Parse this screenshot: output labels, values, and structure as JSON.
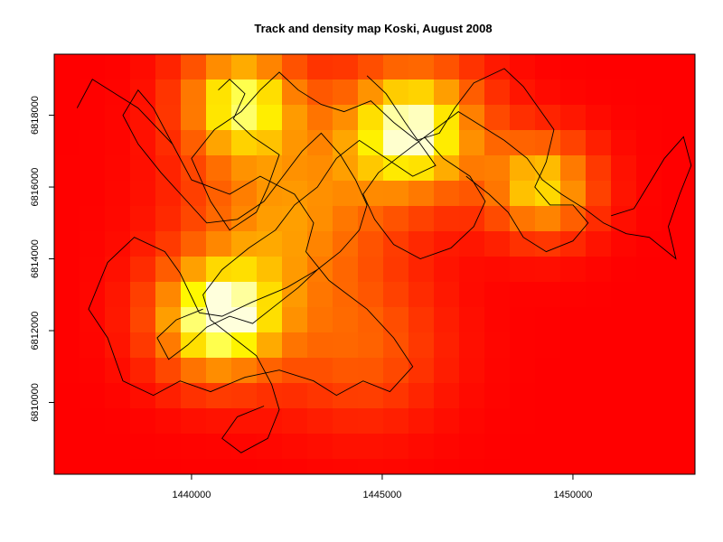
{
  "chart_data": {
    "type": "heatmap",
    "title": "Track and density map Koski, August 2008",
    "xlabel": "",
    "ylabel": "",
    "xlim": [
      1436400,
      1453200
    ],
    "ylim": [
      6808000,
      6819700
    ],
    "x_ticks": [
      1440000,
      1445000,
      1450000
    ],
    "x_tick_labels": [
      "1440000",
      "1445000",
      "1450000"
    ],
    "y_ticks": [
      6810000,
      6812000,
      6814000,
      6816000,
      6818000
    ],
    "y_tick_labels": [
      "6810000",
      "6812000",
      "6814000",
      "6816000",
      "6818000"
    ],
    "grid": false,
    "colormap": "heat",
    "colors": {
      "low": "#ff0000",
      "mid": "#ff8000",
      "high": "#ffff00",
      "peak": "#ffffe0",
      "track": "#000000",
      "frame": "#000000"
    },
    "density_peaks": [
      {
        "x": 1441300,
        "y": 6818400,
        "weight": 0.85,
        "spread": 1100
      },
      {
        "x": 1445800,
        "y": 6817600,
        "weight": 1.0,
        "spread": 1300
      },
      {
        "x": 1440700,
        "y": 6812300,
        "weight": 1.0,
        "spread": 1200
      },
      {
        "x": 1449200,
        "y": 6816000,
        "weight": 0.75,
        "spread": 1000
      },
      {
        "x": 1442500,
        "y": 6815200,
        "weight": 0.55,
        "spread": 1800
      },
      {
        "x": 1444500,
        "y": 6811500,
        "weight": 0.35,
        "spread": 1500
      }
    ],
    "track_segments": [
      [
        [
          1437000,
          6818200
        ],
        [
          1437400,
          6819000
        ],
        [
          1438600,
          6818200
        ],
        [
          1439500,
          6817200
        ],
        [
          1440000,
          6816200
        ],
        [
          1441000,
          6815800
        ],
        [
          1441800,
          6816300
        ],
        [
          1442700,
          6815800
        ],
        [
          1443200,
          6815000
        ],
        [
          1443000,
          6814200
        ],
        [
          1443600,
          6813400
        ],
        [
          1444600,
          6812600
        ],
        [
          1445300,
          6811800
        ],
        [
          1445800,
          6811000
        ],
        [
          1445200,
          6810300
        ],
        [
          1444500,
          6810600
        ],
        [
          1443800,
          6810200
        ],
        [
          1443200,
          6810600
        ],
        [
          1442300,
          6810900
        ],
        [
          1441400,
          6810700
        ],
        [
          1440500,
          6810300
        ],
        [
          1439700,
          6810600
        ],
        [
          1439000,
          6810200
        ],
        [
          1438200,
          6810600
        ],
        [
          1437800,
          6811800
        ],
        [
          1437300,
          6812600
        ],
        [
          1437800,
          6813900
        ],
        [
          1438500,
          6814600
        ],
        [
          1439300,
          6814200
        ],
        [
          1439700,
          6813600
        ],
        [
          1440200,
          6812500
        ],
        [
          1440800,
          6812400
        ],
        [
          1441600,
          6812800
        ],
        [
          1442500,
          6813200
        ],
        [
          1443300,
          6813700
        ]
      ],
      [
        [
          1440700,
          6818700
        ],
        [
          1441000,
          6819000
        ],
        [
          1441400,
          6818600
        ],
        [
          1441100,
          6817900
        ],
        [
          1441600,
          6817400
        ],
        [
          1442300,
          6816900
        ],
        [
          1442000,
          6816000
        ],
        [
          1441700,
          6815300
        ],
        [
          1441000,
          6814800
        ],
        [
          1440500,
          6815600
        ],
        [
          1440000,
          6816800
        ],
        [
          1440600,
          6817600
        ],
        [
          1441300,
          6818100
        ],
        [
          1441800,
          6818700
        ],
        [
          1442300,
          6819200
        ],
        [
          1442800,
          6818700
        ],
        [
          1443400,
          6818300
        ],
        [
          1444000,
          6818100
        ],
        [
          1444700,
          6818400
        ],
        [
          1445300,
          6817800
        ],
        [
          1445900,
          6817300
        ],
        [
          1446500,
          6817500
        ],
        [
          1446900,
          6818200
        ],
        [
          1447400,
          6818900
        ],
        [
          1448200,
          6819300
        ],
        [
          1448700,
          6818800
        ],
        [
          1449100,
          6818200
        ],
        [
          1449500,
          6817600
        ],
        [
          1449300,
          6816700
        ],
        [
          1449000,
          6816000
        ],
        [
          1449400,
          6815500
        ],
        [
          1450000,
          6815500
        ],
        [
          1450400,
          6815000
        ],
        [
          1450000,
          6814500
        ],
        [
          1449300,
          6814200
        ],
        [
          1448700,
          6814600
        ],
        [
          1448300,
          6815300
        ],
        [
          1447800,
          6815800
        ],
        [
          1447200,
          6816300
        ]
      ],
      [
        [
          1444600,
          6819100
        ],
        [
          1445100,
          6818600
        ],
        [
          1445600,
          6817800
        ],
        [
          1446000,
          6817200
        ],
        [
          1446400,
          6816600
        ],
        [
          1445800,
          6816300
        ],
        [
          1445100,
          6816800
        ],
        [
          1444400,
          6817300
        ],
        [
          1443800,
          6816800
        ],
        [
          1443300,
          6816000
        ],
        [
          1442700,
          6815500
        ],
        [
          1442200,
          6814800
        ],
        [
          1441500,
          6814300
        ],
        [
          1440800,
          6813700
        ],
        [
          1440300,
          6813000
        ],
        [
          1440500,
          6812300
        ],
        [
          1441100,
          6811800
        ],
        [
          1441700,
          6811300
        ],
        [
          1442100,
          6810500
        ],
        [
          1442300,
          6809800
        ],
        [
          1442000,
          6809000
        ],
        [
          1441300,
          6808600
        ],
        [
          1440800,
          6809000
        ],
        [
          1441200,
          6809600
        ],
        [
          1441900,
          6809900
        ]
      ],
      [
        [
          1446100,
          6817400
        ],
        [
          1446600,
          6816800
        ],
        [
          1447300,
          6816300
        ],
        [
          1447700,
          6815600
        ],
        [
          1447400,
          6814900
        ],
        [
          1446800,
          6814300
        ],
        [
          1446000,
          6814000
        ],
        [
          1445300,
          6814400
        ],
        [
          1444800,
          6815100
        ],
        [
          1444500,
          6815800
        ],
        [
          1444900,
          6816400
        ],
        [
          1445500,
          6816900
        ],
        [
          1446000,
          6817300
        ],
        [
          1446500,
          6817700
        ],
        [
          1447000,
          6818100
        ],
        [
          1447600,
          6817700
        ],
        [
          1448200,
          6817300
        ],
        [
          1448800,
          6816800
        ],
        [
          1449200,
          6816200
        ],
        [
          1449700,
          6815800
        ],
        [
          1450300,
          6815400
        ],
        [
          1450800,
          6815000
        ],
        [
          1451400,
          6814700
        ],
        [
          1452000,
          6814600
        ],
        [
          1452700,
          6814000
        ],
        [
          1452500,
          6814900
        ],
        [
          1452800,
          6815800
        ],
        [
          1453100,
          6816600
        ],
        [
          1452900,
          6817400
        ],
        [
          1452400,
          6816800
        ],
        [
          1452000,
          6816100
        ],
        [
          1451600,
          6815400
        ],
        [
          1451000,
          6815200
        ]
      ],
      [
        [
          1439500,
          6817200
        ],
        [
          1439000,
          6818200
        ],
        [
          1438600,
          6818700
        ],
        [
          1438200,
          6818000
        ],
        [
          1438600,
          6817200
        ],
        [
          1439200,
          6816400
        ],
        [
          1439800,
          6815700
        ],
        [
          1440400,
          6815000
        ],
        [
          1441200,
          6815100
        ],
        [
          1441900,
          6815600
        ],
        [
          1442400,
          6816300
        ],
        [
          1442900,
          6817000
        ],
        [
          1443400,
          6817500
        ],
        [
          1443900,
          6816900
        ],
        [
          1444300,
          6816200
        ],
        [
          1444600,
          6815500
        ],
        [
          1444400,
          6814800
        ],
        [
          1443900,
          6814200
        ],
        [
          1443300,
          6813700
        ],
        [
          1442800,
          6813200
        ],
        [
          1442200,
          6812700
        ],
        [
          1441600,
          6812200
        ],
        [
          1441000,
          6812400
        ],
        [
          1440400,
          6812100
        ],
        [
          1439900,
          6811600
        ],
        [
          1439400,
          6811200
        ],
        [
          1439100,
          6811800
        ],
        [
          1439600,
          6812300
        ],
        [
          1440300,
          6812600
        ]
      ]
    ]
  }
}
